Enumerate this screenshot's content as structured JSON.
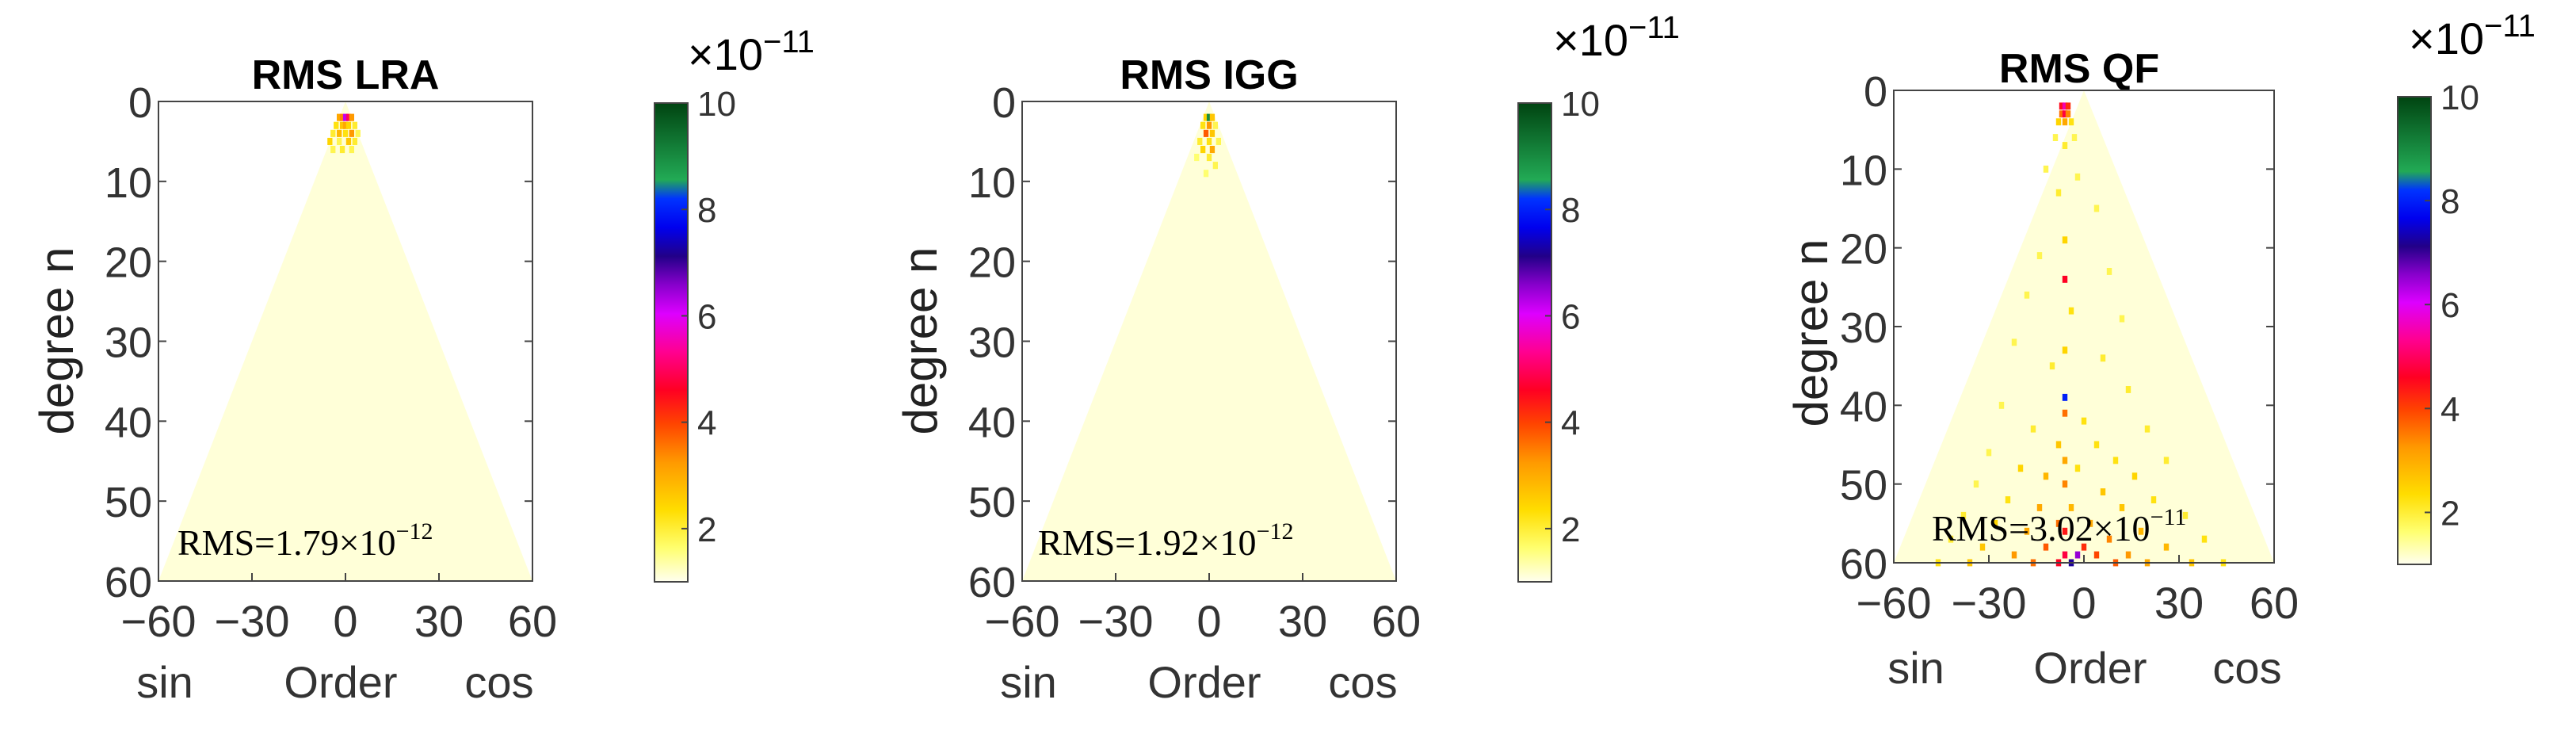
{
  "figure": {
    "panels": [
      {
        "title": "RMS LRA",
        "ylabel": "degree n",
        "xlabel": "Order",
        "x_left_label": "sin",
        "x_right_label": "cos",
        "rms_prefix": "RMS=1.79",
        "rms_times": "×10",
        "rms_exp": "−12",
        "cbar_mult": "×10",
        "cbar_exp": "−11"
      },
      {
        "title": "RMS IGG",
        "ylabel": "degree n",
        "xlabel": "Order",
        "x_left_label": "sin",
        "x_right_label": "cos",
        "rms_prefix": "RMS=1.92",
        "rms_times": "×10",
        "rms_exp": "−12",
        "cbar_mult": "×10",
        "cbar_exp": "−11"
      },
      {
        "title": "RMS QF",
        "ylabel": "degree n",
        "xlabel": "Order",
        "x_left_label": "sin",
        "x_right_label": "cos",
        "rms_prefix": "RMS=3.02",
        "rms_times": "×10",
        "rms_exp": "−11",
        "cbar_mult": "×10",
        "cbar_exp": "−11"
      }
    ]
  },
  "chart_data": [
    {
      "type": "heatmap",
      "title": "RMS LRA",
      "xlabel": "Order",
      "ylabel": "degree n",
      "x_ticks": [
        "−60",
        "−30",
        "0",
        "30",
        "60"
      ],
      "y_ticks": [
        "0",
        "10",
        "20",
        "30",
        "40",
        "50",
        "60"
      ],
      "xlim": [
        -60,
        60
      ],
      "ylim": [
        60,
        0
      ],
      "colorbar": {
        "ticks": [
          "2",
          "4",
          "6",
          "8",
          "10"
        ],
        "range": [
          1,
          10
        ],
        "multiplier": "×10^−11"
      },
      "background_level": 1.0,
      "annotation": "RMS=1.79×10^−12",
      "cells": [
        {
          "x": -2,
          "y": 2,
          "v": 3.0
        },
        {
          "x": -1,
          "y": 2,
          "v": 3.4
        },
        {
          "x": 0,
          "y": 2,
          "v": 6.2
        },
        {
          "x": 1,
          "y": 2,
          "v": 5.0
        },
        {
          "x": 2,
          "y": 2,
          "v": 3.2
        },
        {
          "x": -3,
          "y": 3,
          "v": 2.2
        },
        {
          "x": -1,
          "y": 3,
          "v": 2.6
        },
        {
          "x": 0,
          "y": 3,
          "v": 3.0
        },
        {
          "x": 1,
          "y": 3,
          "v": 2.4
        },
        {
          "x": 3,
          "y": 3,
          "v": 2.0
        },
        {
          "x": -4,
          "y": 4,
          "v": 2.0
        },
        {
          "x": -2,
          "y": 4,
          "v": 2.8
        },
        {
          "x": 0,
          "y": 4,
          "v": 2.2
        },
        {
          "x": 2,
          "y": 4,
          "v": 3.2
        },
        {
          "x": 4,
          "y": 4,
          "v": 1.8
        },
        {
          "x": -5,
          "y": 5,
          "v": 2.4
        },
        {
          "x": -2,
          "y": 5,
          "v": 1.8
        },
        {
          "x": 1,
          "y": 5,
          "v": 2.6
        },
        {
          "x": 3,
          "y": 5,
          "v": 2.0
        },
        {
          "x": -4,
          "y": 6,
          "v": 1.8
        },
        {
          "x": -1,
          "y": 6,
          "v": 2.0
        },
        {
          "x": 2,
          "y": 6,
          "v": 1.8
        }
      ]
    },
    {
      "type": "heatmap",
      "title": "RMS IGG",
      "xlabel": "Order",
      "ylabel": "degree n",
      "x_ticks": [
        "−60",
        "−30",
        "0",
        "30",
        "60"
      ],
      "y_ticks": [
        "0",
        "10",
        "20",
        "30",
        "40",
        "50",
        "60"
      ],
      "xlim": [
        -60,
        60
      ],
      "ylim": [
        60,
        0
      ],
      "colorbar": {
        "ticks": [
          "2",
          "4",
          "6",
          "8",
          "10"
        ],
        "range": [
          1,
          10
        ],
        "multiplier": "×10^−11"
      },
      "background_level": 1.0,
      "annotation": "RMS=1.92×10^−12",
      "cells": [
        {
          "x": -1,
          "y": 2,
          "v": 2.4
        },
        {
          "x": 0,
          "y": 2,
          "v": 9.0
        },
        {
          "x": 1,
          "y": 2,
          "v": 2.6
        },
        {
          "x": -2,
          "y": 3,
          "v": 2.2
        },
        {
          "x": 0,
          "y": 3,
          "v": 3.2
        },
        {
          "x": 2,
          "y": 3,
          "v": 1.8
        },
        {
          "x": -1,
          "y": 4,
          "v": 3.8
        },
        {
          "x": 1,
          "y": 4,
          "v": 2.6
        },
        {
          "x": -3,
          "y": 5,
          "v": 2.0
        },
        {
          "x": 0,
          "y": 5,
          "v": 2.2
        },
        {
          "x": 3,
          "y": 5,
          "v": 1.8
        },
        {
          "x": -2,
          "y": 6,
          "v": 2.4
        },
        {
          "x": 1,
          "y": 6,
          "v": 3.0
        },
        {
          "x": 0,
          "y": 7,
          "v": 2.0
        },
        {
          "x": -4,
          "y": 7,
          "v": 1.6
        },
        {
          "x": 2,
          "y": 8,
          "v": 1.8
        },
        {
          "x": -1,
          "y": 9,
          "v": 1.6
        }
      ]
    },
    {
      "type": "heatmap",
      "title": "RMS QF",
      "xlabel": "Order",
      "ylabel": "degree n",
      "x_ticks": [
        "−60",
        "−30",
        "0",
        "30",
        "60"
      ],
      "y_ticks": [
        "0",
        "10",
        "20",
        "30",
        "40",
        "50",
        "60"
      ],
      "xlim": [
        -60,
        60
      ],
      "ylim": [
        60,
        0
      ],
      "colorbar": {
        "ticks": [
          "2",
          "4",
          "6",
          "8",
          "10"
        ],
        "range": [
          1,
          10
        ],
        "multiplier": "×10^−11"
      },
      "background_level": 1.0,
      "annotation": "RMS=3.02×10^−11",
      "cells": [
        {
          "x": -7,
          "y": 2,
          "v": 4.5
        },
        {
          "x": -6,
          "y": 2,
          "v": 5.5
        },
        {
          "x": -5,
          "y": 2,
          "v": 4.2
        },
        {
          "x": -7,
          "y": 3,
          "v": 3.6
        },
        {
          "x": -6,
          "y": 3,
          "v": 4.8
        },
        {
          "x": -5,
          "y": 3,
          "v": 3.4
        },
        {
          "x": -8,
          "y": 4,
          "v": 2.4
        },
        {
          "x": -6,
          "y": 4,
          "v": 3.0
        },
        {
          "x": -4,
          "y": 4,
          "v": 2.2
        },
        {
          "x": -9,
          "y": 6,
          "v": 1.8
        },
        {
          "x": -3,
          "y": 6,
          "v": 1.8
        },
        {
          "x": -6,
          "y": 7,
          "v": 2.0
        },
        {
          "x": -12,
          "y": 10,
          "v": 1.8
        },
        {
          "x": -2,
          "y": 11,
          "v": 1.8
        },
        {
          "x": -8,
          "y": 13,
          "v": 2.0
        },
        {
          "x": 4,
          "y": 15,
          "v": 1.8
        },
        {
          "x": -6,
          "y": 19,
          "v": 2.4
        },
        {
          "x": -14,
          "y": 21,
          "v": 1.8
        },
        {
          "x": -6,
          "y": 24,
          "v": 4.6
        },
        {
          "x": 8,
          "y": 23,
          "v": 1.8
        },
        {
          "x": -18,
          "y": 26,
          "v": 1.8
        },
        {
          "x": -4,
          "y": 28,
          "v": 2.2
        },
        {
          "x": 12,
          "y": 29,
          "v": 1.8
        },
        {
          "x": -22,
          "y": 32,
          "v": 1.8
        },
        {
          "x": -6,
          "y": 33,
          "v": 2.4
        },
        {
          "x": 6,
          "y": 34,
          "v": 2.0
        },
        {
          "x": -10,
          "y": 35,
          "v": 2.0
        },
        {
          "x": -6,
          "y": 39,
          "v": 8.0
        },
        {
          "x": 14,
          "y": 38,
          "v": 2.0
        },
        {
          "x": -26,
          "y": 40,
          "v": 1.8
        },
        {
          "x": -6,
          "y": 41,
          "v": 3.6
        },
        {
          "x": 0,
          "y": 42,
          "v": 2.2
        },
        {
          "x": -16,
          "y": 43,
          "v": 2.0
        },
        {
          "x": 20,
          "y": 43,
          "v": 2.0
        },
        {
          "x": -8,
          "y": 45,
          "v": 2.6
        },
        {
          "x": 4,
          "y": 45,
          "v": 2.2
        },
        {
          "x": -30,
          "y": 46,
          "v": 1.8
        },
        {
          "x": -6,
          "y": 47,
          "v": 3.0
        },
        {
          "x": 10,
          "y": 47,
          "v": 2.2
        },
        {
          "x": 26,
          "y": 47,
          "v": 2.0
        },
        {
          "x": -20,
          "y": 48,
          "v": 2.4
        },
        {
          "x": -2,
          "y": 48,
          "v": 2.2
        },
        {
          "x": -12,
          "y": 49,
          "v": 2.8
        },
        {
          "x": 16,
          "y": 49,
          "v": 2.4
        },
        {
          "x": -34,
          "y": 50,
          "v": 1.8
        },
        {
          "x": -6,
          "y": 50,
          "v": 3.4
        },
        {
          "x": 6,
          "y": 51,
          "v": 2.6
        },
        {
          "x": -24,
          "y": 52,
          "v": 2.2
        },
        {
          "x": 22,
          "y": 52,
          "v": 2.2
        },
        {
          "x": -14,
          "y": 53,
          "v": 3.0
        },
        {
          "x": -4,
          "y": 53,
          "v": 2.8
        },
        {
          "x": 12,
          "y": 53,
          "v": 2.6
        },
        {
          "x": -38,
          "y": 54,
          "v": 2.0
        },
        {
          "x": 32,
          "y": 54,
          "v": 2.0
        },
        {
          "x": -8,
          "y": 55,
          "v": 3.6
        },
        {
          "x": 2,
          "y": 55,
          "v": 3.0
        },
        {
          "x": -28,
          "y": 55,
          "v": 2.4
        },
        {
          "x": 18,
          "y": 56,
          "v": 2.8
        },
        {
          "x": -18,
          "y": 56,
          "v": 3.0
        },
        {
          "x": -6,
          "y": 56,
          "v": 4.4
        },
        {
          "x": 8,
          "y": 57,
          "v": 3.4
        },
        {
          "x": -42,
          "y": 57,
          "v": 2.0
        },
        {
          "x": 38,
          "y": 57,
          "v": 2.2
        },
        {
          "x": -32,
          "y": 58,
          "v": 2.6
        },
        {
          "x": -12,
          "y": 58,
          "v": 3.8
        },
        {
          "x": 0,
          "y": 58,
          "v": 4.2
        },
        {
          "x": 26,
          "y": 58,
          "v": 2.8
        },
        {
          "x": -6,
          "y": 59,
          "v": 4.8
        },
        {
          "x": 14,
          "y": 59,
          "v": 3.2
        },
        {
          "x": -22,
          "y": 59,
          "v": 3.2
        },
        {
          "x": -2,
          "y": 59,
          "v": 6.5
        },
        {
          "x": 4,
          "y": 59,
          "v": 4.0
        },
        {
          "x": -46,
          "y": 60,
          "v": 2.2
        },
        {
          "x": -36,
          "y": 60,
          "v": 2.6
        },
        {
          "x": -16,
          "y": 60,
          "v": 3.6
        },
        {
          "x": -8,
          "y": 60,
          "v": 4.6
        },
        {
          "x": -4,
          "y": 60,
          "v": 7.2
        },
        {
          "x": 10,
          "y": 60,
          "v": 3.8
        },
        {
          "x": 20,
          "y": 60,
          "v": 3.0
        },
        {
          "x": 34,
          "y": 60,
          "v": 2.6
        },
        {
          "x": 44,
          "y": 60,
          "v": 2.2
        }
      ]
    }
  ]
}
